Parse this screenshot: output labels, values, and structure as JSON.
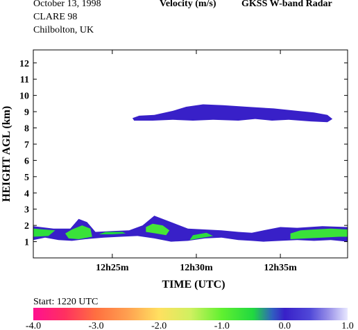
{
  "header": {
    "date": "October  13, 1998",
    "campaign": "CLARE 98",
    "location": "Chilbolton, UK",
    "quantity": "Velocity (m/s)",
    "instrument": "GKSS  W-band Radar"
  },
  "chart_data": {
    "type": "heatmap",
    "xlabel": "TIME (UTC)",
    "ylabel": "HEIGHT AGL (km)",
    "x_units": "minutes after 12h00m",
    "xlim": [
      20.3,
      39.0
    ],
    "ylim": [
      0.0,
      12.8
    ],
    "x_ticks": [
      25,
      30,
      35
    ],
    "x_tick_labels": [
      "12h25m",
      "12h30m",
      "12h35m"
    ],
    "y_ticks": [
      1,
      2,
      3,
      4,
      5,
      6,
      7,
      8,
      9,
      10,
      11,
      12
    ],
    "y_tick_labels": [
      "1",
      "2",
      "3",
      "4",
      "5",
      "6",
      "7",
      "8",
      "9",
      "10",
      "11",
      "12"
    ],
    "start_label": "Start: 1220 UTC",
    "colorbar": {
      "range": [
        -4.0,
        1.0
      ],
      "ticks": [
        -4.0,
        -3.0,
        -2.0,
        -1.0,
        0.0,
        1.0
      ],
      "tick_labels": [
        "-4.0",
        "-3.0",
        "-2.0",
        "-1.0",
        "0.0",
        "1.0"
      ],
      "stops": [
        {
          "value": -4.0,
          "color": "#ff1090"
        },
        {
          "value": -3.5,
          "color": "#ff3060"
        },
        {
          "value": -3.0,
          "color": "#ff7040"
        },
        {
          "value": -2.5,
          "color": "#ffa050"
        },
        {
          "value": -2.0,
          "color": "#ffe060"
        },
        {
          "value": -1.5,
          "color": "#d0f060"
        },
        {
          "value": -1.0,
          "color": "#60f030"
        },
        {
          "value": -0.5,
          "color": "#20d840"
        },
        {
          "value": -0.2,
          "color": "#3060c0"
        },
        {
          "value": 0.0,
          "color": "#3820c8"
        },
        {
          "value": 0.4,
          "color": "#5048d8"
        },
        {
          "value": 0.7,
          "color": "#9890e8"
        },
        {
          "value": 1.0,
          "color": "#e8e8ff"
        }
      ]
    },
    "echo_regions": [
      {
        "name": "upper-cloud",
        "velocity": 0.0,
        "polygon": [
          [
            26.2,
            8.6
          ],
          [
            26.6,
            8.75
          ],
          [
            27.5,
            8.8
          ],
          [
            28.6,
            9.05
          ],
          [
            29.4,
            9.3
          ],
          [
            30.4,
            9.45
          ],
          [
            31.6,
            9.4
          ],
          [
            33.0,
            9.3
          ],
          [
            34.6,
            9.2
          ],
          [
            36.0,
            9.05
          ],
          [
            37.0,
            8.95
          ],
          [
            37.8,
            8.8
          ],
          [
            38.1,
            8.55
          ],
          [
            37.8,
            8.35
          ],
          [
            36.8,
            8.4
          ],
          [
            35.5,
            8.5
          ],
          [
            34.5,
            8.45
          ],
          [
            33.5,
            8.55
          ],
          [
            32.5,
            8.45
          ],
          [
            31.0,
            8.5
          ],
          [
            29.8,
            8.45
          ],
          [
            28.6,
            8.5
          ],
          [
            27.4,
            8.45
          ],
          [
            26.3,
            8.45
          ]
        ]
      },
      {
        "name": "low-cloud-blue",
        "velocity": 0.0,
        "polygon": [
          [
            20.3,
            1.1
          ],
          [
            21.0,
            1.25
          ],
          [
            21.8,
            1.1
          ],
          [
            22.6,
            1.05
          ],
          [
            23.4,
            1.15
          ],
          [
            24.5,
            1.25
          ],
          [
            25.5,
            1.3
          ],
          [
            26.5,
            1.35
          ],
          [
            27.5,
            1.2
          ],
          [
            28.5,
            1.0
          ],
          [
            29.5,
            1.05
          ],
          [
            30.5,
            1.2
          ],
          [
            31.5,
            1.25
          ],
          [
            32.5,
            1.1
          ],
          [
            33.3,
            1.05
          ],
          [
            34.0,
            1.0
          ],
          [
            35.0,
            1.05
          ],
          [
            36.0,
            1.1
          ],
          [
            37.0,
            1.05
          ],
          [
            38.0,
            1.1
          ],
          [
            39.0,
            1.0
          ],
          [
            39.0,
            1.9
          ],
          [
            37.5,
            1.95
          ],
          [
            36.0,
            1.85
          ],
          [
            35.0,
            1.9
          ],
          [
            34.0,
            1.7
          ],
          [
            33.3,
            1.55
          ],
          [
            32.5,
            1.6
          ],
          [
            31.5,
            1.7
          ],
          [
            30.5,
            1.75
          ],
          [
            29.5,
            1.8
          ],
          [
            28.5,
            2.2
          ],
          [
            27.5,
            2.6
          ],
          [
            26.8,
            2.0
          ],
          [
            26.0,
            1.7
          ],
          [
            25.0,
            1.65
          ],
          [
            24.0,
            1.6
          ],
          [
            23.5,
            2.2
          ],
          [
            23.0,
            2.4
          ],
          [
            22.5,
            1.8
          ],
          [
            21.5,
            1.8
          ],
          [
            20.3,
            1.95
          ]
        ]
      },
      {
        "name": "low-cloud-green-a",
        "velocity": -0.6,
        "polygon": [
          [
            20.3,
            1.3
          ],
          [
            21.2,
            1.35
          ],
          [
            21.6,
            1.7
          ],
          [
            20.3,
            1.8
          ]
        ]
      },
      {
        "name": "low-cloud-green-b",
        "velocity": -0.7,
        "polygon": [
          [
            22.4,
            1.2
          ],
          [
            23.0,
            1.15
          ],
          [
            23.8,
            1.3
          ],
          [
            23.7,
            1.8
          ],
          [
            23.2,
            2.0
          ],
          [
            22.6,
            1.75
          ],
          [
            22.2,
            1.5
          ]
        ]
      },
      {
        "name": "low-cloud-green-c",
        "velocity": -0.5,
        "polygon": [
          [
            24.2,
            1.45
          ],
          [
            25.0,
            1.45
          ],
          [
            25.8,
            1.5
          ],
          [
            25.6,
            1.6
          ],
          [
            24.6,
            1.6
          ]
        ]
      },
      {
        "name": "low-cloud-green-d",
        "velocity": -0.8,
        "polygon": [
          [
            27.0,
            1.6
          ],
          [
            27.6,
            1.5
          ],
          [
            28.2,
            1.4
          ],
          [
            28.4,
            1.7
          ],
          [
            28.0,
            2.0
          ],
          [
            27.4,
            2.1
          ],
          [
            27.0,
            1.9
          ]
        ]
      },
      {
        "name": "low-cloud-green-e",
        "velocity": -0.6,
        "polygon": [
          [
            29.6,
            1.1
          ],
          [
            30.4,
            1.25
          ],
          [
            31.0,
            1.35
          ],
          [
            30.6,
            1.55
          ],
          [
            29.8,
            1.4
          ]
        ]
      },
      {
        "name": "low-cloud-green-f",
        "velocity": -0.7,
        "polygon": [
          [
            35.6,
            1.15
          ],
          [
            36.5,
            1.2
          ],
          [
            37.5,
            1.25
          ],
          [
            38.5,
            1.3
          ],
          [
            39.0,
            1.3
          ],
          [
            39.0,
            1.75
          ],
          [
            38.0,
            1.8
          ],
          [
            37.0,
            1.75
          ],
          [
            36.2,
            1.7
          ],
          [
            35.6,
            1.5
          ]
        ]
      }
    ]
  }
}
